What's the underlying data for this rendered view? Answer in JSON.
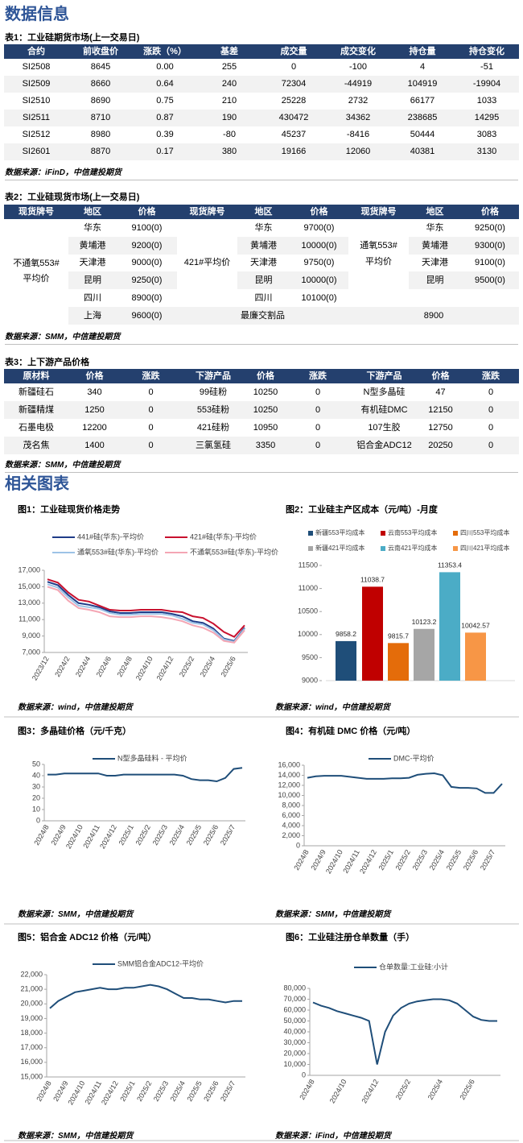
{
  "header": {
    "title": "数据信息"
  },
  "table1": {
    "caption": "表1：工业硅期货市场(上一交易日)",
    "headers": [
      "合约",
      "前收盘价",
      "涨跌（%）",
      "基差",
      "成交量",
      "成交变化",
      "持仓量",
      "持仓变化"
    ],
    "rows": [
      [
        "SI2508",
        "8645",
        "0.00",
        "255",
        "0",
        "-100",
        "4",
        "-51"
      ],
      [
        "SI2509",
        "8660",
        "0.64",
        "240",
        "72304",
        "-44919",
        "104919",
        "-19904"
      ],
      [
        "SI2510",
        "8690",
        "0.75",
        "210",
        "25228",
        "2732",
        "66177",
        "1033"
      ],
      [
        "SI2511",
        "8710",
        "0.87",
        "190",
        "430472",
        "34362",
        "238685",
        "14295"
      ],
      [
        "SI2512",
        "8980",
        "0.39",
        "-80",
        "45237",
        "-8416",
        "50444",
        "3083"
      ],
      [
        "SI2601",
        "8870",
        "0.17",
        "380",
        "19166",
        "12060",
        "40381",
        "3130"
      ]
    ],
    "source": "数据来源：iFinD，中信建投期货"
  },
  "table2": {
    "caption": "表2：工业硅现货市场(上一交易日)",
    "headers": [
      "现货牌号",
      "地区",
      "价格",
      "现货牌号",
      "地区",
      "价格",
      "现货牌号",
      "地区",
      "价格"
    ],
    "groups": [
      {
        "brand": "不通氧553#平均价",
        "rows": [
          [
            "华东",
            "9100(0)"
          ],
          [
            "黄埔港",
            "9200(0)"
          ],
          [
            "天津港",
            "9000(0)"
          ],
          [
            "昆明",
            "9250(0)"
          ],
          [
            "四川",
            "8900(0)"
          ],
          [
            "上海",
            "9600(0)"
          ]
        ]
      },
      {
        "brand": "421#平均价",
        "rows": [
          [
            "华东",
            "9700(0)"
          ],
          [
            "黄埔港",
            "10000(0)"
          ],
          [
            "天津港",
            "9750(0)"
          ],
          [
            "昆明",
            "10000(0)"
          ],
          [
            "四川",
            "10100(0)"
          ]
        ]
      },
      {
        "brand": "通氧553#平均价",
        "rows": [
          [
            "华东",
            "9250(0)"
          ],
          [
            "黄埔港",
            "9300(0)"
          ],
          [
            "天津港",
            "9100(0)"
          ],
          [
            "昆明",
            "9500(0)"
          ]
        ]
      }
    ],
    "cheapest": {
      "label": "最廉交割品",
      "value": "8900"
    },
    "source": "数据来源：SMM，中信建投期货"
  },
  "table3": {
    "caption": "表3：上下游产品价格",
    "headers": [
      "原材料",
      "价格",
      "涨跌",
      "下游产品",
      "价格",
      "涨跌",
      "下游产品",
      "价格",
      "涨跌"
    ],
    "rows": [
      [
        "新疆硅石",
        "340",
        "0",
        "99硅粉",
        "10250",
        "0",
        "N型多晶硅",
        "47",
        "0"
      ],
      [
        "新疆精煤",
        "1250",
        "0",
        "553硅粉",
        "10250",
        "0",
        "有机硅DMC",
        "12150",
        "0"
      ],
      [
        "石墨电极",
        "12200",
        "0",
        "421硅粉",
        "10950",
        "0",
        "107生胶",
        "12750",
        "0"
      ],
      [
        "茂名焦",
        "1400",
        "0",
        "三氯氢硅",
        "3350",
        "0",
        "铝合金ADC12",
        "20250",
        "0"
      ]
    ],
    "source": "数据来源：SMM，中信建投期货"
  },
  "section2": {
    "title": "相关图表"
  },
  "figures": [
    {
      "type": "line",
      "title": "图1：工业硅现货价格走势",
      "source": "数据来源：wind，中信建投期货",
      "categories": [
        "2023/12",
        null,
        "2024/2",
        null,
        "2024/4",
        null,
        "2024/6",
        null,
        "2024/8",
        null,
        "2024/10",
        null,
        "2024/12",
        null,
        "2025/2",
        null,
        "2025/4",
        null,
        "2025/6",
        null
      ],
      "ylim": [
        7000,
        17000
      ],
      "yticks": [
        {
          "value": 7000,
          "label": "7,000"
        },
        {
          "value": 9000,
          "label": "9,000"
        },
        {
          "value": 11000,
          "label": "11,000"
        },
        {
          "value": 13000,
          "label": "13,000"
        },
        {
          "value": 15000,
          "label": "15,000"
        },
        {
          "value": 17000,
          "label": "17,000"
        }
      ],
      "series": [
        {
          "name": "441#硅(华东)-平均价",
          "color": "#1f3c88",
          "values": [
            15600,
            15200,
            14000,
            13000,
            12800,
            12500,
            12000,
            11800,
            11800,
            11900,
            11900,
            11900,
            11700,
            11400,
            10800,
            10600,
            9900,
            8700,
            8400,
            10000
          ]
        },
        {
          "name": "421#硅(华东)-平均价",
          "color": "#c8102e",
          "values": [
            15900,
            15500,
            14300,
            13400,
            13200,
            12700,
            12200,
            12100,
            12100,
            12200,
            12200,
            12200,
            12000,
            11900,
            11400,
            11200,
            10500,
            9500,
            8900,
            10300
          ]
        },
        {
          "name": "通氧553#硅(华东)-平均价",
          "color": "#9dc3e6",
          "values": [
            15300,
            14900,
            13700,
            12700,
            12500,
            12300,
            11800,
            11600,
            11600,
            11700,
            11700,
            11700,
            11500,
            11100,
            10600,
            10400,
            9700,
            8600,
            8300,
            9900
          ]
        },
        {
          "name": "不通氧553#硅(华东)-平均价",
          "color": "#f4a6b4",
          "values": [
            15000,
            14600,
            13300,
            12400,
            12200,
            11900,
            11400,
            11300,
            11300,
            11400,
            11400,
            11300,
            11100,
            10800,
            10300,
            10000,
            9400,
            8400,
            8200,
            9700
          ]
        }
      ]
    },
    {
      "type": "bar",
      "title": "图2：工业硅主产区成本（元/吨）-月度",
      "source": "数据来源：wind，中信建投期货",
      "ylim": [
        9000,
        11500
      ],
      "yticks": [
        9000,
        9500,
        10000,
        10500,
        11000,
        11500
      ],
      "series": [
        {
          "name": "新疆553平均成本",
          "color": "#1f4e79",
          "values": [
            9858.2
          ]
        },
        {
          "name": "云南553平均成本",
          "color": "#c00000",
          "values": [
            11038.7
          ]
        },
        {
          "name": "四川553平均成本",
          "color": "#e46c0a",
          "values": [
            9815.7
          ]
        },
        {
          "name": "新疆421平均成本",
          "color": "#a6a6a6",
          "values": [
            10123.2
          ]
        },
        {
          "name": "云南421平均成本",
          "color": "#4bacc6",
          "values": [
            11353.4
          ]
        },
        {
          "name": "四川421平均成本",
          "color": "#f79646",
          "values": [
            10042.57
          ]
        }
      ]
    },
    {
      "type": "line",
      "title": "图3：多晶硅价格（元/千克）",
      "source": "数据来源：SMM，中信建投期货",
      "categories": [
        "2024/8",
        null,
        "2024/9",
        null,
        "2024/10",
        null,
        "2024/11",
        null,
        "2024/12",
        null,
        "2025/1",
        null,
        "2025/2",
        null,
        "2025/3",
        null,
        "2025/4",
        null,
        "2025/5",
        null,
        "2025/6",
        null,
        "2025/7",
        null
      ],
      "ylim": [
        0,
        50
      ],
      "yticks": [
        0,
        10,
        20,
        30,
        40,
        50
      ],
      "series": [
        {
          "name": "N型多晶硅料 - 平均价",
          "color": "#1f4e79",
          "values": [
            41,
            41,
            42,
            42,
            42,
            42,
            42,
            40,
            40,
            41,
            41,
            41,
            41,
            41,
            41,
            41,
            40,
            37,
            36,
            36,
            35,
            38,
            46,
            47
          ]
        }
      ]
    },
    {
      "type": "line",
      "title": "图4：有机硅 DMC 价格（元/吨）",
      "source": "数据来源：SMM，中信建投期货",
      "categories": [
        "2024/8",
        null,
        "2024/9",
        null,
        "2024/10",
        null,
        "2024/11",
        null,
        "2024/12",
        null,
        "2025/1",
        null,
        "2025/2",
        null,
        "2025/3",
        null,
        "2025/4",
        null,
        "2025/5",
        null,
        "2025/6",
        null,
        "2025/7",
        null
      ],
      "ylim": [
        0,
        16000
      ],
      "yticks": [
        0,
        {
          "value": 2000,
          "label": "2,000"
        },
        {
          "value": 4000,
          "label": "4,000"
        },
        {
          "value": 6000,
          "label": "6,000"
        },
        {
          "value": 8000,
          "label": "8,000"
        },
        {
          "value": 10000,
          "label": "10,000"
        },
        {
          "value": 12000,
          "label": "12,000"
        },
        {
          "value": 14000,
          "label": "14,000"
        },
        {
          "value": 16000,
          "label": "16,000"
        }
      ],
      "series": [
        {
          "name": "DMC-平均价",
          "color": "#1f4e79",
          "values": [
            13500,
            13800,
            13900,
            13900,
            13900,
            13700,
            13500,
            13300,
            13300,
            13300,
            13400,
            13400,
            13500,
            14100,
            14300,
            14400,
            14000,
            11700,
            11500,
            11500,
            11400,
            10500,
            10500,
            12300
          ]
        }
      ]
    },
    {
      "type": "line",
      "title": "图5：铝合金 ADC12 价格（元/吨）",
      "source": "数据来源：SMM，中信建投期货",
      "categories": [
        "2024/8",
        null,
        "2024/9",
        null,
        "2024/10",
        null,
        "2024/11",
        null,
        "2024/12",
        null,
        "2025/1",
        null,
        "2025/2",
        null,
        "2025/3",
        null,
        "2025/4",
        null,
        "2025/5",
        null,
        "2025/6",
        null,
        "2025/7",
        null
      ],
      "ylim": [
        15000,
        22000
      ],
      "yticks": [
        {
          "value": 15000,
          "label": "15,000"
        },
        {
          "value": 16000,
          "label": "16,000"
        },
        {
          "value": 17000,
          "label": "17,000"
        },
        {
          "value": 18000,
          "label": "18,000"
        },
        {
          "value": 19000,
          "label": "19,000"
        },
        {
          "value": 20000,
          "label": "20,000"
        },
        {
          "value": 21000,
          "label": "21,000"
        },
        {
          "value": 22000,
          "label": "22,000"
        }
      ],
      "series": [
        {
          "name": "SMM铝合金ADC12-平均价",
          "color": "#1f4e79",
          "values": [
            19700,
            20200,
            20500,
            20800,
            20900,
            21000,
            21100,
            21000,
            21000,
            21100,
            21100,
            21200,
            21300,
            21200,
            21000,
            20700,
            20400,
            20400,
            20300,
            20300,
            20200,
            20100,
            20200,
            20200
          ]
        }
      ]
    },
    {
      "type": "line",
      "title": "图6：工业硅注册仓单数量（手）",
      "source": "数据来源：iFind，中信建投期货",
      "categories": [
        "2024/8",
        null,
        null,
        null,
        "2024/10",
        null,
        null,
        null,
        "2024/12",
        null,
        null,
        null,
        "2025/2",
        null,
        null,
        null,
        "2025/4",
        null,
        null,
        null,
        "2025/6",
        null,
        null,
        null
      ],
      "ylim": [
        0,
        80000
      ],
      "yticks": [
        0,
        {
          "value": 10000,
          "label": "10,000"
        },
        {
          "value": 20000,
          "label": "20,000"
        },
        {
          "value": 30000,
          "label": "30,000"
        },
        {
          "value": 40000,
          "label": "40,000"
        },
        {
          "value": 50000,
          "label": "50,000"
        },
        {
          "value": 60000,
          "label": "60,000"
        },
        {
          "value": 70000,
          "label": "70,000"
        },
        {
          "value": 80000,
          "label": "80,000"
        }
      ],
      "series": [
        {
          "name": "仓单数量:工业硅:小计",
          "color": "#1f4e79",
          "values": [
            67000,
            64000,
            62000,
            59000,
            57000,
            55000,
            53000,
            50000,
            10000,
            40000,
            55000,
            62000,
            66000,
            68000,
            69000,
            70000,
            70000,
            69000,
            66000,
            60000,
            54000,
            51000,
            50000,
            50000
          ]
        }
      ]
    }
  ]
}
